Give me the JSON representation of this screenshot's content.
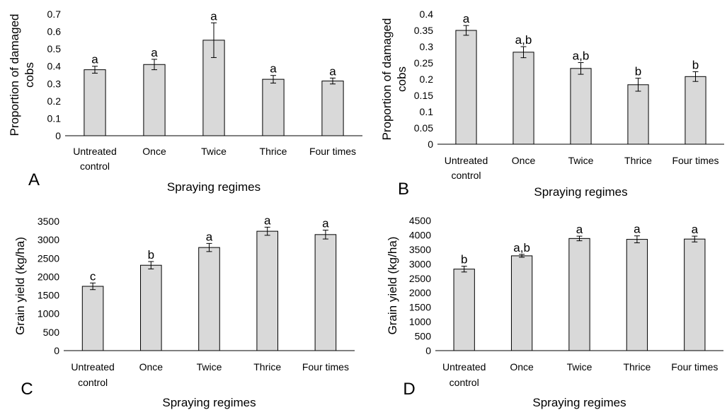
{
  "chart_data": [
    {
      "type": "bar",
      "panel_label": "A",
      "categories": [
        [
          "Untreated",
          "control"
        ],
        [
          "Once"
        ],
        [
          "Twice"
        ],
        [
          "Thrice"
        ],
        [
          "Four times"
        ]
      ],
      "values": [
        0.38,
        0.41,
        0.55,
        0.325,
        0.315
      ],
      "errors": [
        0.02,
        0.03,
        0.1,
        0.022,
        0.017
      ],
      "significance": [
        "a",
        "a",
        "a",
        "a",
        "a"
      ],
      "xlabel": "Spraying regimes",
      "ylabel": [
        "Proportion of damaged",
        "cobs"
      ],
      "ylim": [
        0,
        0.7
      ],
      "yticks": [
        "0",
        "0.1",
        "0.2",
        "0.3",
        "0.4",
        "0.5",
        "0.6",
        "0.7"
      ],
      "bar_color": "#d9d9d9"
    },
    {
      "type": "bar",
      "panel_label": "B",
      "categories": [
        [
          "Untreated",
          "control"
        ],
        [
          "Once"
        ],
        [
          "Twice"
        ],
        [
          "Thrice"
        ],
        [
          "Four times"
        ]
      ],
      "values": [
        0.35,
        0.283,
        0.233,
        0.183,
        0.208
      ],
      "errors": [
        0.015,
        0.017,
        0.018,
        0.02,
        0.015
      ],
      "significance": [
        "a",
        "a,b",
        "a,b",
        "b",
        "b"
      ],
      "xlabel": "Spraying regimes",
      "ylabel": [
        "Proportion of damaged",
        "cobs"
      ],
      "ylim": [
        0,
        0.4
      ],
      "yticks": [
        "0",
        "0.05",
        "0.1",
        "0.15",
        "0.2",
        "0.25",
        "0.3",
        "0.35",
        "0.4"
      ],
      "bar_color": "#d9d9d9"
    },
    {
      "type": "bar",
      "panel_label": "C",
      "categories": [
        [
          "Untreated",
          "control"
        ],
        [
          "Once"
        ],
        [
          "Twice"
        ],
        [
          "Thrice"
        ],
        [
          "Four times"
        ]
      ],
      "values": [
        1740,
        2310,
        2790,
        3230,
        3140
      ],
      "errors": [
        90,
        100,
        110,
        110,
        120
      ],
      "significance": [
        "c",
        "b",
        "a",
        "a",
        "a"
      ],
      "xlabel": "Spraying regimes",
      "ylabel": [
        "Grain yield (kg/ha)"
      ],
      "ylim": [
        0,
        3500
      ],
      "yticks": [
        "0",
        "500",
        "1000",
        "1500",
        "2000",
        "2500",
        "3000",
        "3500"
      ],
      "bar_color": "#d9d9d9"
    },
    {
      "type": "bar",
      "panel_label": "D",
      "categories": [
        [
          "Untreated",
          "control"
        ],
        [
          "Once"
        ],
        [
          "Twice"
        ],
        [
          "Thrice"
        ],
        [
          "Four times"
        ]
      ],
      "values": [
        2820,
        3280,
        3880,
        3850,
        3860
      ],
      "errors": [
        100,
        50,
        80,
        120,
        100
      ],
      "significance": [
        "b",
        "a,b",
        "a",
        "a",
        "a"
      ],
      "xlabel": "Spraying regimes",
      "ylabel": [
        "Grain yield (kg/ha)"
      ],
      "ylim": [
        0,
        4500
      ],
      "yticks": [
        "0",
        "500",
        "1000",
        "1500",
        "2000",
        "2500",
        "3000",
        "3500",
        "4000",
        "4500"
      ],
      "bar_color": "#d9d9d9"
    }
  ]
}
